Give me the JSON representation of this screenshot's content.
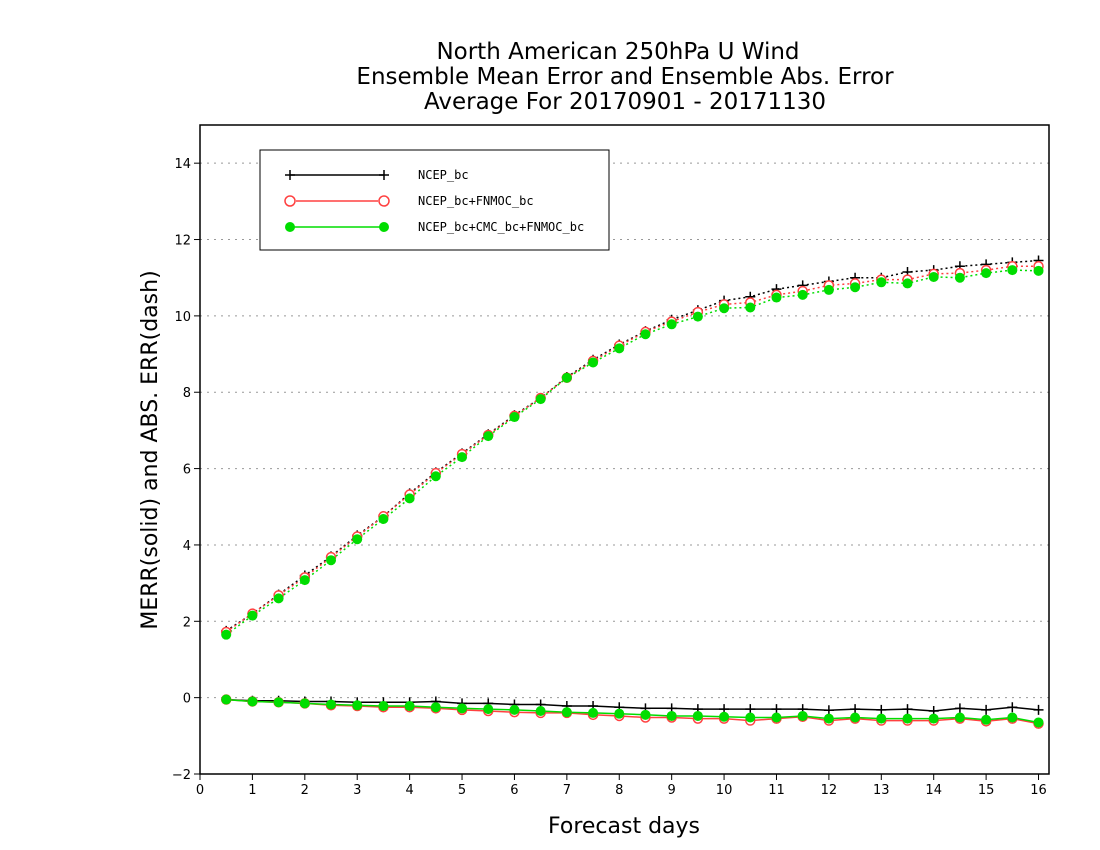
{
  "chart_data": {
    "type": "line",
    "title_lines": [
      "North American 250hPa U Wind",
      "Ensemble Mean Error and Ensemble Abs. Error",
      "Average For 20170901 - 20171130"
    ],
    "xlabel": "Forecast days",
    "ylabel": "MERR(solid) and ABS. ERR(dash)",
    "xlim": [
      0,
      16.2
    ],
    "ylim": [
      -2,
      15
    ],
    "xticks": [
      0,
      1,
      2,
      3,
      4,
      5,
      6,
      7,
      8,
      9,
      10,
      11,
      12,
      13,
      14,
      15,
      16
    ],
    "yticks": [
      -2,
      0,
      2,
      4,
      6,
      8,
      10,
      12,
      14
    ],
    "ytick_labels": [
      "−2",
      "0",
      "2",
      "4",
      "6",
      "8",
      "10",
      "12",
      "14"
    ],
    "grid": "horizontal dotted",
    "legend_position": "top-left",
    "x": [
      0.5,
      1,
      1.5,
      2,
      2.5,
      3,
      3.5,
      4,
      4.5,
      5,
      5.5,
      6,
      6.5,
      7,
      7.5,
      8,
      8.5,
      9,
      9.5,
      10,
      10.5,
      11,
      11.5,
      12,
      12.5,
      13,
      13.5,
      14,
      14.5,
      15,
      15.5,
      16
    ],
    "series": [
      {
        "name": "NCEP_bc",
        "color": "#000000",
        "marker": "plus",
        "merr": [
          -0.05,
          -0.08,
          -0.08,
          -0.1,
          -0.1,
          -0.12,
          -0.12,
          -0.12,
          -0.1,
          -0.15,
          -0.15,
          -0.18,
          -0.18,
          -0.22,
          -0.22,
          -0.25,
          -0.28,
          -0.28,
          -0.3,
          -0.3,
          -0.3,
          -0.3,
          -0.3,
          -0.33,
          -0.3,
          -0.32,
          -0.3,
          -0.35,
          -0.28,
          -0.32,
          -0.25,
          -0.32
        ],
        "abs_err": [
          1.75,
          2.2,
          2.7,
          3.2,
          3.7,
          4.25,
          4.75,
          5.35,
          5.9,
          6.4,
          6.9,
          7.4,
          7.85,
          8.4,
          8.85,
          9.25,
          9.6,
          9.9,
          10.15,
          10.4,
          10.5,
          10.7,
          10.8,
          10.9,
          11.0,
          11.0,
          11.15,
          11.2,
          11.3,
          11.35,
          11.4,
          11.45
        ]
      },
      {
        "name": "NCEP_bc+FNMOC_bc",
        "color": "#ff4040",
        "marker": "open-circle",
        "merr": [
          -0.05,
          -0.1,
          -0.12,
          -0.15,
          -0.2,
          -0.22,
          -0.25,
          -0.25,
          -0.28,
          -0.32,
          -0.35,
          -0.38,
          -0.4,
          -0.4,
          -0.45,
          -0.48,
          -0.52,
          -0.52,
          -0.55,
          -0.55,
          -0.6,
          -0.55,
          -0.5,
          -0.6,
          -0.55,
          -0.6,
          -0.6,
          -0.6,
          -0.55,
          -0.62,
          -0.55,
          -0.68
        ],
        "abs_err": [
          1.72,
          2.2,
          2.68,
          3.15,
          3.68,
          4.22,
          4.75,
          5.32,
          5.88,
          6.38,
          6.88,
          7.38,
          7.85,
          8.38,
          8.82,
          9.22,
          9.58,
          9.85,
          10.1,
          10.3,
          10.35,
          10.55,
          10.65,
          10.8,
          10.85,
          10.95,
          10.95,
          11.1,
          11.12,
          11.2,
          11.3,
          11.3
        ]
      },
      {
        "name": "NCEP_bc+CMC_bc+FNMOC_bc",
        "color": "#00dd00",
        "marker": "filled-circle",
        "merr": [
          -0.05,
          -0.1,
          -0.12,
          -0.15,
          -0.18,
          -0.2,
          -0.22,
          -0.22,
          -0.25,
          -0.28,
          -0.3,
          -0.32,
          -0.35,
          -0.38,
          -0.4,
          -0.42,
          -0.45,
          -0.48,
          -0.48,
          -0.5,
          -0.52,
          -0.52,
          -0.48,
          -0.55,
          -0.52,
          -0.55,
          -0.55,
          -0.55,
          -0.52,
          -0.58,
          -0.52,
          -0.65
        ],
        "abs_err": [
          1.65,
          2.15,
          2.6,
          3.08,
          3.6,
          4.15,
          4.68,
          5.22,
          5.8,
          6.3,
          6.85,
          7.35,
          7.82,
          8.38,
          8.78,
          9.15,
          9.52,
          9.78,
          9.98,
          10.2,
          10.22,
          10.48,
          10.55,
          10.68,
          10.75,
          10.88,
          10.85,
          11.02,
          11.0,
          11.12,
          11.2,
          11.18
        ]
      }
    ]
  }
}
